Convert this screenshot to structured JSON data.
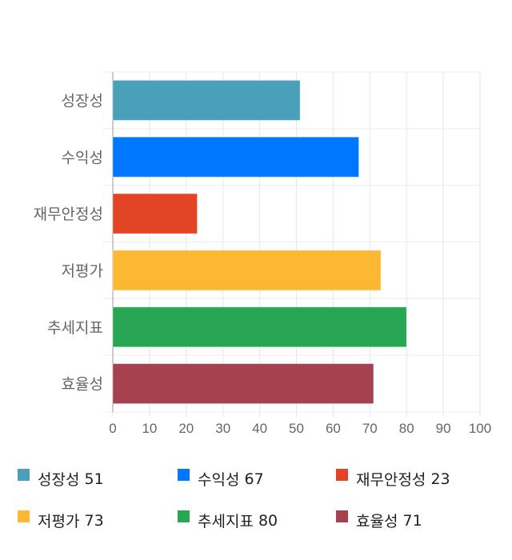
{
  "chart_data": {
    "type": "bar",
    "orientation": "horizontal",
    "categories": [
      "성장성",
      "수익성",
      "재무안정성",
      "저평가",
      "추세지표",
      "효율성"
    ],
    "values": [
      51,
      67,
      23,
      73,
      80,
      71
    ],
    "colors": [
      "#4aa0b9",
      "#0077ff",
      "#e24525",
      "#fdb833",
      "#29a653",
      "#a6414f"
    ],
    "xlim": [
      0,
      100
    ],
    "xticks": [
      "0",
      "10",
      "20",
      "30",
      "40",
      "50",
      "60",
      "70",
      "80",
      "90",
      "100"
    ],
    "grid": true,
    "legend_position": "bottom",
    "legend": [
      {
        "name": "성장성",
        "value": "51"
      },
      {
        "name": "수익성",
        "value": "67"
      },
      {
        "name": "재무안정성",
        "value": "23"
      },
      {
        "name": "저평가",
        "value": "73"
      },
      {
        "name": "추세지표",
        "value": "80"
      },
      {
        "name": "효율성",
        "value": "71"
      }
    ]
  }
}
